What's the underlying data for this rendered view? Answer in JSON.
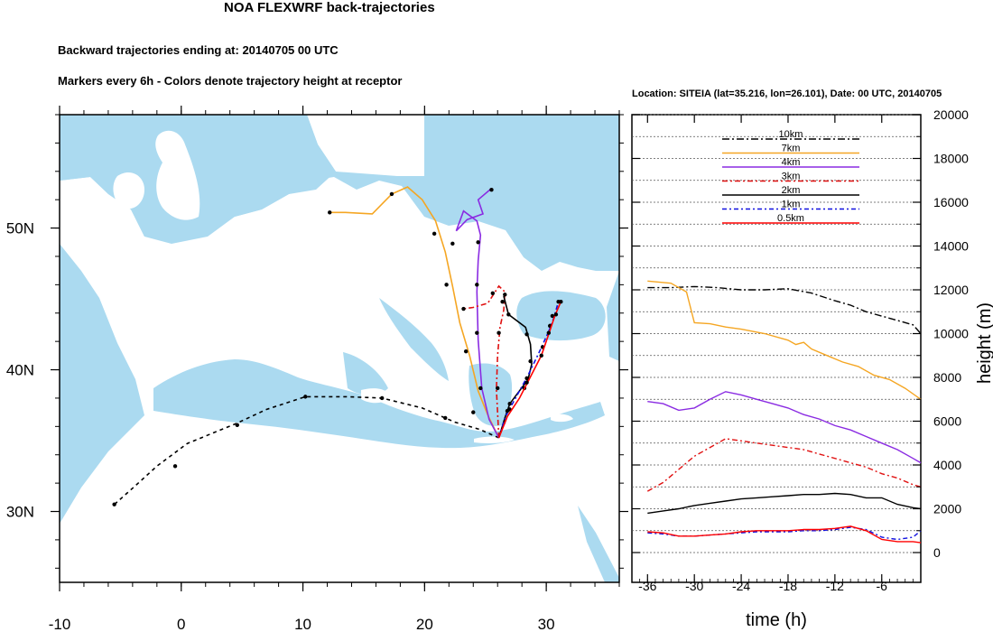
{
  "header": {
    "title": "NOA FLEXWRF back-trajectories",
    "subtitle1": "Backward trajectories ending at: 20140705  00 UTC",
    "subtitle2": "Markers every 6h - Colors denote trajectory height at receptor",
    "location": "Location: SITEIA (lat=35.216,  lon=26.101), Date: 00 UTC, 20140705"
  },
  "colors": {
    "sea": "#abdaf0",
    "land": "#ffffff",
    "t10km": "#000000",
    "t7km": "#f5a623",
    "t4km": "#8a2be2",
    "t3km": "#e01010",
    "t2km": "#000000",
    "t1km": "#1010e0",
    "t05km": "#ff0000"
  },
  "map": {
    "lon_range": [
      -10,
      36
    ],
    "lat_range": [
      25,
      58
    ],
    "lon_ticks": [
      -10,
      0,
      10,
      20,
      30
    ],
    "lon_tick_labels": [
      "-10",
      "0",
      "10",
      "20",
      "30"
    ],
    "lat_ticks": [
      30,
      40,
      50
    ],
    "lat_tick_labels": [
      "30N",
      "40N",
      "50N"
    ],
    "receptor": {
      "lat": 35.216,
      "lon": 26.101
    },
    "trajectories": [
      {
        "name": "10km",
        "dash": "4,4",
        "color_key": "t10km",
        "points": [
          [
            26.1,
            35.2
          ],
          [
            24.5,
            35.8
          ],
          [
            22.5,
            36.3
          ],
          [
            19.8,
            37.3
          ],
          [
            16.5,
            38.0
          ],
          [
            13.6,
            38.1
          ],
          [
            10.2,
            38.1
          ],
          [
            7.0,
            37.2
          ],
          [
            4.5,
            36.2
          ],
          [
            0.5,
            34.8
          ],
          [
            -2.0,
            33.2
          ],
          [
            -3.8,
            31.8
          ],
          [
            -5.5,
            30.5
          ]
        ],
        "markers": [
          [
            21.7,
            36.6
          ],
          [
            16.5,
            38.0
          ],
          [
            10.2,
            38.1
          ],
          [
            4.6,
            36.1
          ],
          [
            -0.5,
            33.2
          ],
          [
            -5.5,
            30.5
          ]
        ]
      },
      {
        "name": "7km",
        "dash": "",
        "color_key": "t7km",
        "points": [
          [
            26.1,
            35.2
          ],
          [
            25.2,
            36.8
          ],
          [
            24.4,
            38.5
          ],
          [
            23.7,
            41.0
          ],
          [
            22.9,
            43.3
          ],
          [
            22.3,
            45.9
          ],
          [
            21.7,
            48.3
          ],
          [
            20.9,
            50.5
          ],
          [
            19.8,
            52.0
          ],
          [
            18.6,
            52.9
          ],
          [
            17.3,
            52.4
          ],
          [
            15.7,
            51.0
          ],
          [
            13.5,
            51.1
          ],
          [
            12.2,
            51.1
          ]
        ],
        "markers": [
          [
            24.0,
            37.0
          ],
          [
            23.4,
            41.3
          ],
          [
            21.8,
            46.0
          ],
          [
            20.8,
            49.6
          ],
          [
            17.3,
            52.4
          ],
          [
            12.2,
            51.1
          ]
        ]
      },
      {
        "name": "4km",
        "dash": "",
        "color_key": "t4km",
        "points": [
          [
            26.1,
            35.2
          ],
          [
            25.3,
            36.5
          ],
          [
            24.7,
            38.7
          ],
          [
            24.4,
            42.1
          ],
          [
            24.3,
            45.5
          ],
          [
            24.4,
            47.7
          ],
          [
            24.6,
            49.5
          ],
          [
            24.3,
            50.5
          ],
          [
            23.2,
            51.2
          ],
          [
            22.6,
            49.8
          ],
          [
            23.5,
            50.6
          ],
          [
            24.8,
            51.0
          ],
          [
            24.4,
            52.0
          ],
          [
            25.5,
            52.8
          ]
        ],
        "markers": [
          [
            24.6,
            38.7
          ],
          [
            24.3,
            42.6
          ],
          [
            24.3,
            46.0
          ],
          [
            24.4,
            49.0
          ],
          [
            22.3,
            48.9
          ],
          [
            25.5,
            52.7
          ]
        ]
      },
      {
        "name": "3km",
        "dash": "6,3,2,3",
        "color_key": "t3km",
        "points": [
          [
            26.1,
            35.2
          ],
          [
            26.0,
            37.0
          ],
          [
            25.9,
            38.6
          ],
          [
            26.0,
            41.0
          ],
          [
            26.2,
            43.0
          ],
          [
            26.5,
            44.2
          ],
          [
            26.6,
            45.5
          ],
          [
            26.1,
            45.9
          ],
          [
            25.2,
            44.7
          ],
          [
            24.0,
            44.4
          ],
          [
            23.2,
            44.3
          ]
        ],
        "markers": [
          [
            26.0,
            38.7
          ],
          [
            26.1,
            42.6
          ],
          [
            26.4,
            44.8
          ],
          [
            25.6,
            45.4
          ],
          [
            23.2,
            44.3
          ]
        ]
      },
      {
        "name": "2km",
        "dash": "",
        "color_key": "t2km",
        "points": [
          [
            26.1,
            35.2
          ],
          [
            26.6,
            36.6
          ],
          [
            27.0,
            37.6
          ],
          [
            27.7,
            38.4
          ],
          [
            28.5,
            39.3
          ],
          [
            28.8,
            40.4
          ],
          [
            28.7,
            41.8
          ],
          [
            28.3,
            43.0
          ],
          [
            26.9,
            43.9
          ],
          [
            26.5,
            45.2
          ]
        ],
        "markers": [
          [
            27.0,
            37.6
          ],
          [
            28.2,
            38.7
          ],
          [
            28.7,
            40.6
          ],
          [
            28.4,
            42.5
          ],
          [
            26.9,
            43.9
          ],
          [
            26.6,
            45.3
          ]
        ]
      },
      {
        "name": "1km",
        "dash": "5,3,2,3",
        "color_key": "t1km",
        "points": [
          [
            26.1,
            35.2
          ],
          [
            26.7,
            36.8
          ],
          [
            27.6,
            38.2
          ],
          [
            28.5,
            39.6
          ],
          [
            29.4,
            41.2
          ],
          [
            30.2,
            42.7
          ],
          [
            30.6,
            43.6
          ],
          [
            31.0,
            44.8
          ]
        ],
        "markers": [
          [
            27.0,
            37.2
          ],
          [
            28.4,
            39.4
          ],
          [
            29.7,
            41.6
          ],
          [
            30.3,
            43.1
          ],
          [
            30.5,
            43.8
          ],
          [
            31.0,
            44.8
          ]
        ]
      },
      {
        "name": "0.5km",
        "dash": "",
        "color_key": "t05km",
        "points": [
          [
            26.1,
            35.2
          ],
          [
            26.8,
            36.7
          ],
          [
            27.8,
            38.0
          ],
          [
            28.7,
            39.5
          ],
          [
            29.6,
            41.0
          ],
          [
            30.2,
            42.5
          ],
          [
            30.7,
            43.8
          ],
          [
            31.2,
            44.8
          ]
        ],
        "markers": [
          [
            26.8,
            37.1
          ],
          [
            28.4,
            39.1
          ],
          [
            29.6,
            41.0
          ],
          [
            30.2,
            42.6
          ],
          [
            30.8,
            43.9
          ],
          [
            31.2,
            44.8
          ]
        ]
      }
    ]
  },
  "chart_data": {
    "type": "line",
    "xlabel": "time (h)",
    "ylabel": "height (m)",
    "xlim": [
      -38,
      -1
    ],
    "ylim": [
      0,
      20000
    ],
    "x_ticks": [
      -36,
      -30,
      -24,
      -18,
      -12,
      -6
    ],
    "x_tick_labels": [
      "-36",
      "-30",
      "-24",
      "-18",
      "-12",
      "-6"
    ],
    "y_ticks": [
      0,
      2000,
      4000,
      6000,
      8000,
      10000,
      12000,
      14000,
      16000,
      18000,
      20000
    ],
    "y_tick_labels": [
      "0",
      "2000",
      "4000",
      "6000",
      "8000",
      "10000",
      "12000",
      "14000",
      "16000",
      "18000",
      "20000"
    ],
    "grid": "horizontal dotted",
    "legend_position": "top",
    "series": [
      {
        "name": "10km",
        "color_key": "t10km",
        "dash": "8,3,2,3",
        "x": [
          -36,
          -33,
          -30,
          -27,
          -24,
          -21,
          -18,
          -15,
          -12,
          -10,
          -8,
          -6,
          -4,
          -2,
          -1
        ],
        "y": [
          12100,
          12100,
          12150,
          12100,
          12000,
          12000,
          12050,
          11850,
          11500,
          11300,
          11000,
          10800,
          10600,
          10400,
          10000
        ]
      },
      {
        "name": "7km",
        "color_key": "t7km",
        "dash": "",
        "x": [
          -36,
          -33,
          -31,
          -30,
          -28,
          -26,
          -24,
          -21,
          -18,
          -17,
          -16,
          -15,
          -13,
          -11,
          -9,
          -7,
          -5,
          -3,
          -1
        ],
        "y": [
          12400,
          12300,
          11900,
          10500,
          10450,
          10300,
          10200,
          10000,
          9700,
          9500,
          9600,
          9300,
          9000,
          8700,
          8500,
          8100,
          7900,
          7500,
          7000
        ]
      },
      {
        "name": "4km",
        "color_key": "t4km",
        "dash": "",
        "x": [
          -36,
          -34,
          -32,
          -30,
          -28,
          -26,
          -24,
          -22,
          -20,
          -18,
          -16,
          -14,
          -12,
          -10,
          -8,
          -6,
          -4,
          -2,
          -1
        ],
        "y": [
          6900,
          6800,
          6500,
          6600,
          7000,
          7350,
          7200,
          7000,
          6800,
          6600,
          6300,
          6100,
          5800,
          5600,
          5300,
          5000,
          4700,
          4300,
          4100
        ]
      },
      {
        "name": "3km",
        "color_key": "t3km",
        "dash": "6,3,2,3",
        "x": [
          -36,
          -34,
          -32,
          -30,
          -28,
          -26,
          -24,
          -22,
          -20,
          -18,
          -16,
          -14,
          -12,
          -10,
          -8,
          -6,
          -4,
          -2,
          -1
        ],
        "y": [
          2800,
          3200,
          3800,
          4400,
          4800,
          5200,
          5100,
          5000,
          4900,
          4800,
          4700,
          4500,
          4300,
          4100,
          3900,
          3600,
          3400,
          3100,
          3000
        ]
      },
      {
        "name": "2km",
        "color_key": "t2km",
        "dash": "",
        "x": [
          -36,
          -34,
          -32,
          -30,
          -28,
          -26,
          -24,
          -22,
          -20,
          -18,
          -16,
          -14,
          -12,
          -10,
          -8,
          -6,
          -4,
          -2,
          -1
        ],
        "y": [
          1800,
          1900,
          2000,
          2150,
          2250,
          2350,
          2450,
          2500,
          2550,
          2600,
          2650,
          2650,
          2700,
          2650,
          2500,
          2500,
          2200,
          2050,
          2000
        ]
      },
      {
        "name": "1km",
        "color_key": "t1km",
        "dash": "5,3,2,3",
        "x": [
          -36,
          -34,
          -32,
          -30,
          -28,
          -26,
          -24,
          -22,
          -20,
          -18,
          -16,
          -14,
          -12,
          -10,
          -8,
          -6,
          -4,
          -2,
          -1
        ],
        "y": [
          900,
          850,
          750,
          750,
          800,
          850,
          900,
          950,
          950,
          950,
          1000,
          1000,
          1050,
          1150,
          1050,
          700,
          600,
          700,
          1000
        ]
      },
      {
        "name": "0.5km",
        "color_key": "t05km",
        "dash": "",
        "x": [
          -36,
          -34,
          -32,
          -30,
          -28,
          -26,
          -24,
          -22,
          -20,
          -18,
          -16,
          -14,
          -12,
          -10,
          -8,
          -6,
          -4,
          -2,
          -1
        ],
        "y": [
          950,
          900,
          750,
          750,
          800,
          850,
          950,
          1000,
          1000,
          1000,
          1050,
          1050,
          1100,
          1200,
          1000,
          600,
          500,
          500,
          450
        ]
      }
    ]
  }
}
